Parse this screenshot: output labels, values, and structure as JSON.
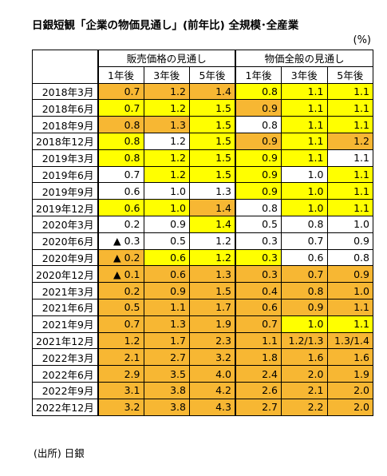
{
  "header": {
    "title": "日銀短観「企業の物価見通し」(前年比) 全規模･全産業",
    "unit": "(%)"
  },
  "table": {
    "groups": [
      "販売価格の見通し",
      "物価全般の見通し"
    ],
    "columns": [
      "1年後",
      "3年後",
      "5年後",
      "1年後",
      "3年後",
      "5年後"
    ],
    "rows": [
      {
        "label": "2018年3月",
        "cells": [
          "0.7",
          "1.2",
          "1.4",
          "0.8",
          "1.1",
          "1.1"
        ],
        "fills": [
          "#f7b733",
          "#f7b733",
          "#f7b733",
          "#ffff00",
          "#ffff00",
          "#ffff00"
        ]
      },
      {
        "label": "2018年6月",
        "cells": [
          "0.7",
          "1.2",
          "1.5",
          "0.9",
          "1.1",
          "1.1"
        ],
        "fills": [
          "#ffff00",
          "#ffff00",
          "#ffff00",
          "#f7b733",
          "#ffff00",
          "#ffff00"
        ]
      },
      {
        "label": "2018年9月",
        "cells": [
          "0.8",
          "1.3",
          "1.5",
          "0.8",
          "1.1",
          "1.1"
        ],
        "fills": [
          "#f7b733",
          "#f7b733",
          "#ffff00",
          "#ffffff",
          "#ffff00",
          "#ffff00"
        ]
      },
      {
        "label": "2018年12月",
        "cells": [
          "0.8",
          "1.2",
          "1.5",
          "0.9",
          "1.1",
          "1.2"
        ],
        "fills": [
          "#ffff00",
          "#ffffff",
          "#ffff00",
          "#f7b733",
          "#ffff00",
          "#f7b733"
        ]
      },
      {
        "label": "2019年3月",
        "cells": [
          "0.8",
          "1.2",
          "1.5",
          "0.9",
          "1.1",
          "1.1"
        ],
        "fills": [
          "#ffff00",
          "#ffff00",
          "#ffff00",
          "#ffff00",
          "#ffff00",
          "#ffffff"
        ]
      },
      {
        "label": "2019年6月",
        "cells": [
          "0.7",
          "1.2",
          "1.5",
          "0.9",
          "1.0",
          "1.1"
        ],
        "fills": [
          "#ffffff",
          "#ffff00",
          "#ffff00",
          "#ffff00",
          "#ffffff",
          "#ffff00"
        ]
      },
      {
        "label": "2019年9月",
        "cells": [
          "0.6",
          "1.0",
          "1.3",
          "0.9",
          "1.0",
          "1.1"
        ],
        "fills": [
          "#ffffff",
          "#ffffff",
          "#ffffff",
          "#ffff00",
          "#ffff00",
          "#ffff00"
        ]
      },
      {
        "label": "2019年12月",
        "cells": [
          "0.6",
          "1.0",
          "1.4",
          "0.8",
          "1.0",
          "1.1"
        ],
        "fills": [
          "#ffff00",
          "#ffff00",
          "#f7b733",
          "#ffffff",
          "#ffff00",
          "#ffff00"
        ]
      },
      {
        "label": "2020年3月",
        "cells": [
          "0.2",
          "0.9",
          "1.4",
          "0.5",
          "0.8",
          "1.0"
        ],
        "fills": [
          "#ffffff",
          "#ffffff",
          "#ffff00",
          "#ffffff",
          "#ffffff",
          "#ffffff"
        ]
      },
      {
        "label": "2020年6月",
        "cells": [
          "▲ 0.3",
          "0.5",
          "1.2",
          "0.3",
          "0.7",
          "0.9"
        ],
        "fills": [
          "#ffffff",
          "#ffffff",
          "#ffffff",
          "#ffffff",
          "#ffffff",
          "#ffffff"
        ]
      },
      {
        "label": "2020年9月",
        "cells": [
          "▲ 0.2",
          "0.6",
          "1.2",
          "0.3",
          "0.6",
          "0.8"
        ],
        "fills": [
          "#f7b733",
          "#ffff00",
          "#ffff00",
          "#ffff00",
          "#ffffff",
          "#ffffff"
        ]
      },
      {
        "label": "2020年12月",
        "cells": [
          "▲ 0.1",
          "0.6",
          "1.3",
          "0.3",
          "0.7",
          "0.9"
        ],
        "fills": [
          "#f7b733",
          "#f7b733",
          "#f7b733",
          "#f7b733",
          "#f7b733",
          "#f7b733"
        ]
      },
      {
        "label": "2021年3月",
        "cells": [
          "0.2",
          "0.9",
          "1.5",
          "0.4",
          "0.8",
          "1.0"
        ],
        "fills": [
          "#f7b733",
          "#f7b733",
          "#f7b733",
          "#f7b733",
          "#f7b733",
          "#f7b733"
        ]
      },
      {
        "label": "2021年6月",
        "cells": [
          "0.5",
          "1.1",
          "1.7",
          "0.6",
          "0.9",
          "1.1"
        ],
        "fills": [
          "#f7b733",
          "#f7b733",
          "#f7b733",
          "#f7b733",
          "#f7b733",
          "#f7b733"
        ]
      },
      {
        "label": "2021年9月",
        "cells": [
          "0.7",
          "1.3",
          "1.9",
          "0.7",
          "1.0",
          "1.1"
        ],
        "fills": [
          "#f7b733",
          "#f7b733",
          "#f7b733",
          "#f7b733",
          "#ffff00",
          "#ffff00"
        ]
      },
      {
        "label": "2021年12月",
        "cells": [
          "1.2",
          "1.7",
          "2.3",
          "1.1",
          "1.2/1.3",
          "1.3/1.4"
        ],
        "fills": [
          "#f7b733",
          "#f7b733",
          "#f7b733",
          "#f7b733",
          "#f7b733",
          "#f7b733"
        ]
      },
      {
        "label": "2022年3月",
        "cells": [
          "2.1",
          "2.7",
          "3.2",
          "1.8",
          "1.6",
          "1.6"
        ],
        "fills": [
          "#f7b733",
          "#f7b733",
          "#f7b733",
          "#f7b733",
          "#f7b733",
          "#f7b733"
        ]
      },
      {
        "label": "2022年6月",
        "cells": [
          "2.9",
          "3.5",
          "4.0",
          "2.4",
          "2.0",
          "1.9"
        ],
        "fills": [
          "#f7b733",
          "#f7b733",
          "#f7b733",
          "#f7b733",
          "#f7b733",
          "#f7b733"
        ]
      },
      {
        "label": "2022年9月",
        "cells": [
          "3.1",
          "3.8",
          "4.2",
          "2.6",
          "2.1",
          "2.0"
        ],
        "fills": [
          "#f7b733",
          "#f7b733",
          "#f7b733",
          "#f7b733",
          "#f7b733",
          "#f7b733"
        ]
      },
      {
        "label": "2022年12月",
        "cells": [
          "3.2",
          "3.8",
          "4.3",
          "2.7",
          "2.2",
          "2.0"
        ],
        "fills": [
          "#f7b733",
          "#f7b733",
          "#f7b733",
          "#f7b733",
          "#f7b733",
          "#f7b733"
        ]
      }
    ]
  },
  "footer": {
    "source": "(出所) 日銀"
  }
}
